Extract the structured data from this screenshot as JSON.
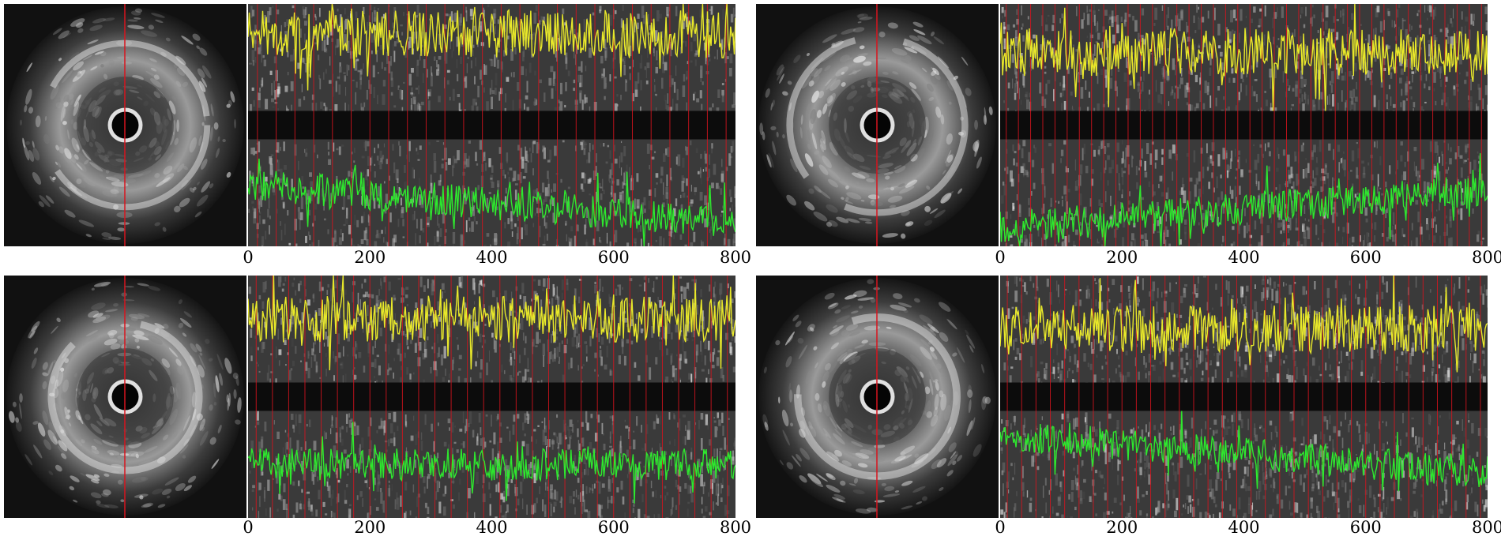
{
  "panels": [
    {
      "id": "top-left",
      "x_axis": {
        "min": 0,
        "max": 800,
        "ticks": [
          "0",
          "200",
          "400",
          "600",
          "800"
        ]
      },
      "frame_marker_count": 26,
      "colors": {
        "marker": "#d8141e",
        "upper_trace": "#e8e82a",
        "lower_trace": "#2ee82e"
      },
      "upper_trace_level": 0.72,
      "lower_trace_level": 0.4,
      "lower_trace_trend": "descending"
    },
    {
      "id": "top-right",
      "x_axis": {
        "min": 0,
        "max": 800,
        "ticks": [
          "0",
          "200",
          "400",
          "600",
          "800"
        ]
      },
      "frame_marker_count": 40,
      "colors": {
        "marker": "#d8141e",
        "upper_trace": "#e8e82a",
        "lower_trace": "#2ee82e"
      },
      "upper_trace_level": 0.55,
      "lower_trace_level": 0.35,
      "lower_trace_trend": "ascending"
    },
    {
      "id": "bottom-left",
      "x_axis": {
        "min": 0,
        "max": 800,
        "ticks": [
          "0",
          "200",
          "400",
          "600",
          "800"
        ]
      },
      "frame_marker_count": 30,
      "colors": {
        "marker": "#d8141e",
        "upper_trace": "#e8e82a",
        "lower_trace": "#2ee82e"
      },
      "upper_trace_level": 0.6,
      "lower_trace_level": 0.5,
      "lower_trace_trend": "flat"
    },
    {
      "id": "bottom-right",
      "x_axis": {
        "min": 0,
        "max": 800,
        "ticks": [
          "0",
          "200",
          "400",
          "600",
          "800"
        ]
      },
      "frame_marker_count": 34,
      "colors": {
        "marker": "#d8141e",
        "upper_trace": "#e8e82a",
        "lower_trace": "#2ee82e"
      },
      "upper_trace_level": 0.5,
      "lower_trace_level": 0.6,
      "lower_trace_trend": "descending"
    }
  ]
}
